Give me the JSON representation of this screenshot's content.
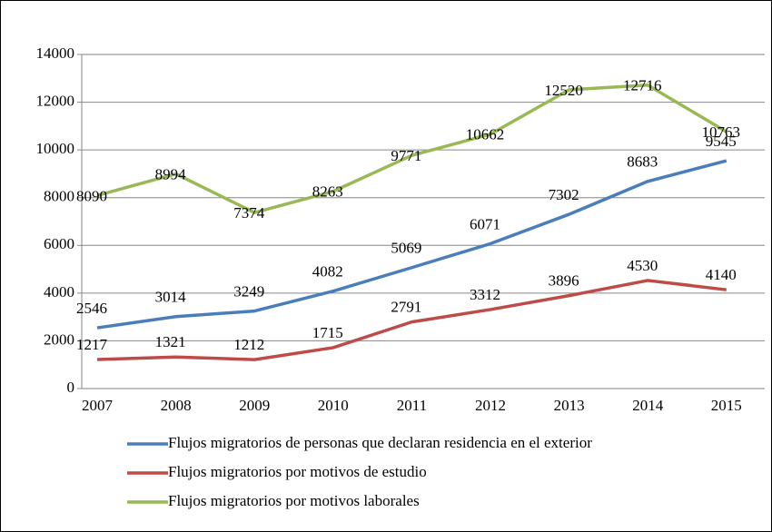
{
  "chart_data": {
    "type": "line",
    "categories": [
      "2007",
      "2008",
      "2009",
      "2010",
      "2011",
      "2012",
      "2013",
      "2014",
      "2015"
    ],
    "series": [
      {
        "name": "Flujos migratorios de personas que declaran residencia en el exterior",
        "color": "#4a7ebb",
        "values": [
          2546,
          3014,
          3249,
          4082,
          5069,
          6071,
          7302,
          8683,
          9545
        ]
      },
      {
        "name": "Flujos migratorios por motivos de estudio",
        "color": "#be4b48",
        "values": [
          1217,
          1321,
          1212,
          1715,
          2791,
          3312,
          3896,
          4530,
          4140
        ]
      },
      {
        "name": "Flujos migratorios por motivos laborales",
        "color": "#98b954",
        "values": [
          8090,
          8994,
          7374,
          8263,
          9771,
          10662,
          12520,
          12716,
          10763
        ]
      }
    ],
    "ylim": [
      0,
      14000
    ],
    "yticks": [
      0,
      2000,
      4000,
      6000,
      8000,
      10000,
      12000,
      14000
    ],
    "grid": true
  }
}
